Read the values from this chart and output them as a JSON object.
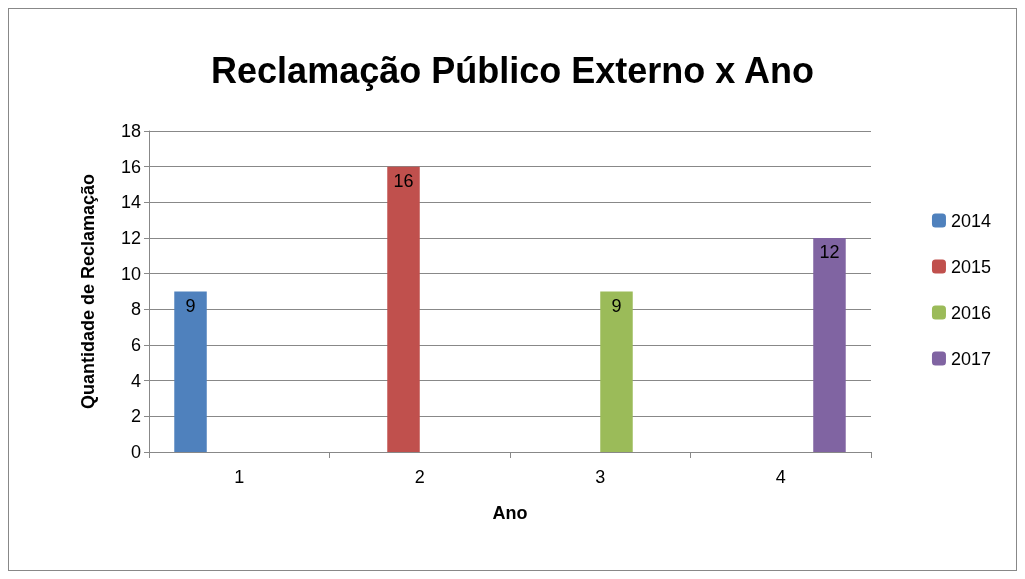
{
  "chart_data": {
    "type": "bar",
    "title": "Reclamação Público Externo x Ano",
    "xlabel": "Ano",
    "ylabel": "Quantidade de Reclamação",
    "categories": [
      "1",
      "2",
      "3",
      "4"
    ],
    "series": [
      {
        "name": "2014",
        "color": "#4f81bd",
        "values": [
          9,
          null,
          null,
          null
        ]
      },
      {
        "name": "2015",
        "color": "#c0504d",
        "values": [
          null,
          16,
          null,
          null
        ]
      },
      {
        "name": "2016",
        "color": "#9bbb59",
        "values": [
          null,
          null,
          9,
          null
        ]
      },
      {
        "name": "2017",
        "color": "#8064a2",
        "values": [
          null,
          null,
          null,
          12
        ]
      }
    ],
    "ylim": [
      0,
      18
    ],
    "yticks": [
      0,
      2,
      4,
      6,
      8,
      10,
      12,
      14,
      16,
      18
    ],
    "grid": "y",
    "legend": "right",
    "data_labels": true
  }
}
